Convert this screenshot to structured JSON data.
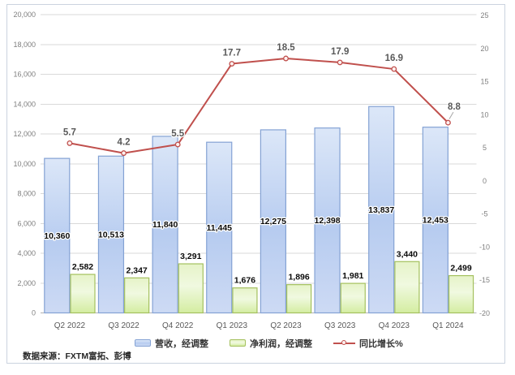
{
  "chart_data": {
    "type": "bar",
    "subtype": "grouped-bars-with-line-dual-axis",
    "categories": [
      "Q2 2022",
      "Q3 2022",
      "Q4 2022",
      "Q1 2023",
      "Q2 2023",
      "Q3 2023",
      "Q4 2023",
      "Q1 2024"
    ],
    "series": [
      {
        "name": "营收，经调整",
        "type": "bar",
        "axis": "left",
        "values": [
          10360,
          10513,
          11840,
          11445,
          12275,
          12398,
          13837,
          12453
        ]
      },
      {
        "name": "净利润，经调整",
        "type": "bar",
        "axis": "left",
        "values": [
          2582,
          2347,
          3291,
          1676,
          1896,
          1981,
          3440,
          2499
        ]
      },
      {
        "name": "同比增长%",
        "type": "line",
        "axis": "right",
        "values": [
          5.7,
          4.2,
          5.5,
          17.7,
          18.5,
          17.9,
          16.9,
          8.8
        ]
      }
    ],
    "left_axis": {
      "min": 0,
      "max": 20000,
      "step": 2000,
      "tick_labels": [
        "0",
        "2,000",
        "4,000",
        "6,000",
        "8,000",
        "10,000",
        "12,000",
        "14,000",
        "16,000",
        "18,000",
        "20,000"
      ]
    },
    "right_axis": {
      "min": -20,
      "max": 25,
      "step": 5,
      "tick_labels": [
        "25",
        "20",
        "15",
        "10",
        "5",
        "0",
        "-5",
        "-10",
        "-15",
        "-20"
      ]
    },
    "grid": true,
    "legend_position": "bottom",
    "title": ""
  },
  "source_note": "数据来源：FXTM富拓、彭博",
  "colors": {
    "bar_revenue_fill_top": "#dce7f8",
    "bar_revenue_fill_mid": "#b7ccf0",
    "bar_revenue_fill_bottom": "#cddaf4",
    "bar_revenue_border": "#84a2d4",
    "bar_profit_fill_top": "#e6f3c8",
    "bar_profit_fill_mid": "#f0f9e0",
    "bar_profit_fill_bottom": "#d4eda1",
    "bar_profit_border": "#a4c05e",
    "line_growth": "#c0504d",
    "marker_fill": "#fdf0ef",
    "leader_line": "#a6a6a6",
    "gridline": "#d9d9d9",
    "axis_line": "#b3b3b3",
    "tick_text": "#7f7f7f",
    "category_text": "#595959",
    "frame_border": "#cbd3df"
  }
}
